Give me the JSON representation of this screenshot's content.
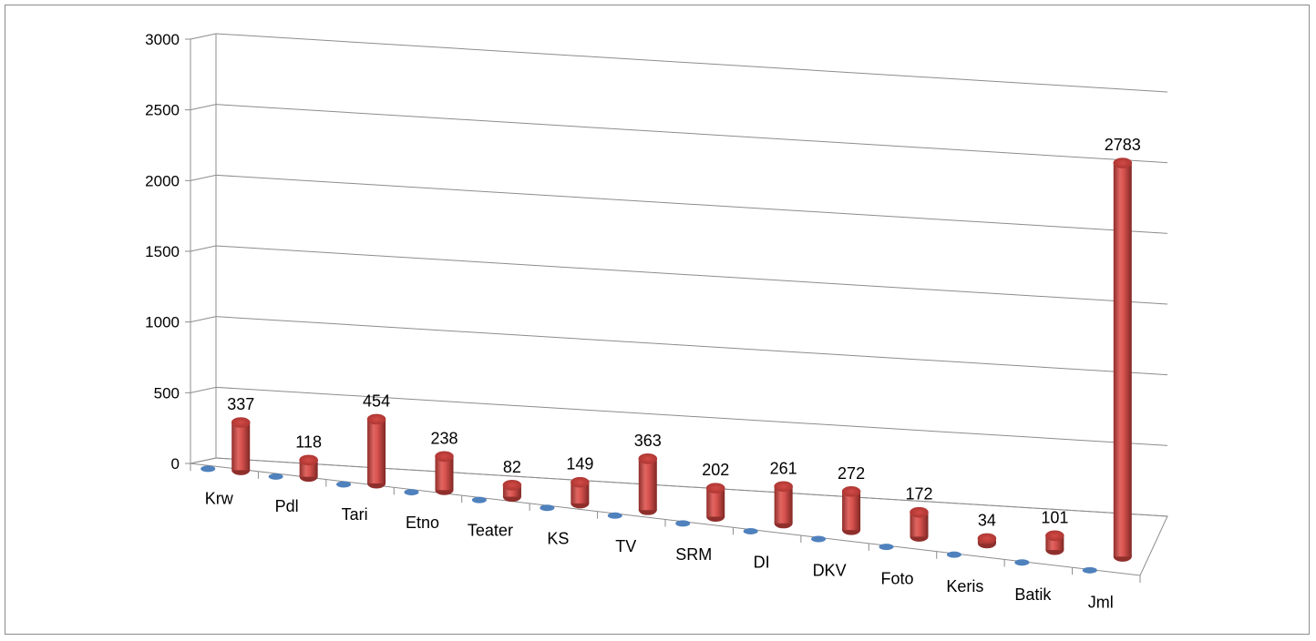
{
  "chart_data": {
    "type": "bar",
    "style": "3d-cylinder",
    "categories": [
      "Krw",
      "Pdl",
      "Tari",
      "Etno",
      "Teater",
      "KS",
      "TV",
      "SRM",
      "DI",
      "DKV",
      "Foto",
      "Keris",
      "Batik",
      "Jml"
    ],
    "series": [
      {
        "values": [
          0,
          0,
          0,
          0,
          0,
          0,
          0,
          0,
          0,
          0,
          0,
          0,
          0,
          0
        ],
        "color": "#4f81bd"
      },
      {
        "values": [
          337,
          118,
          454,
          238,
          82,
          149,
          363,
          202,
          261,
          272,
          172,
          34,
          101,
          2783
        ],
        "color": "#c0504d"
      }
    ],
    "data_labels": [
      "337",
      "118",
      "454",
      "238",
      "82",
      "149",
      "363",
      "202",
      "261",
      "272",
      "172",
      "34",
      "101",
      "2783"
    ],
    "ylim": [
      0,
      3000
    ],
    "yticks": [
      "0",
      "500",
      "1000",
      "1500",
      "2000",
      "2500",
      "3000"
    ],
    "grid": true,
    "legend": "none"
  }
}
